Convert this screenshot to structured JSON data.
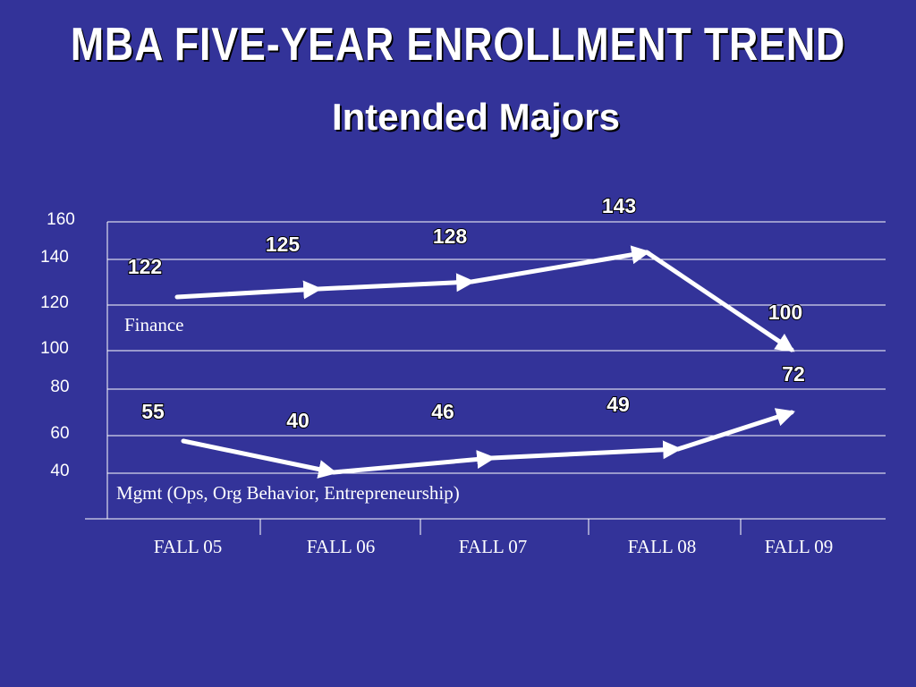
{
  "chart_data": {
    "type": "line",
    "title": "MBA FIVE-YEAR ENROLLMENT TREND",
    "subtitle": "Intended Majors",
    "categories": [
      "FALL 05",
      "FALL 06",
      "FALL 07",
      "FALL 08",
      "FALL 09"
    ],
    "y_ticks": [
      160,
      140,
      120,
      100,
      80,
      60,
      40
    ],
    "grid": true,
    "series": [
      {
        "name": "Finance",
        "values": [
          122,
          125,
          128,
          143,
          100
        ],
        "color": "#ffffff"
      },
      {
        "name": "Mgmt (Ops, Org Behavior, Entrepreneurship)",
        "values": [
          55,
          40,
          46,
          49,
          72
        ],
        "color": "#ffffff"
      }
    ]
  },
  "colors": {
    "background": "#333399",
    "text": "#ffffff",
    "grid": "#ffffff"
  }
}
